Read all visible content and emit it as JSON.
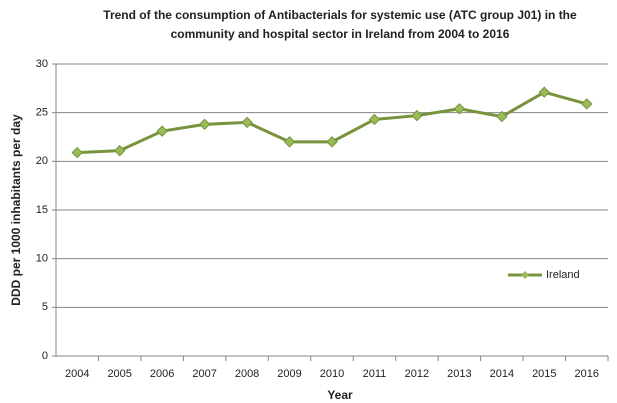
{
  "chart_data": {
    "type": "line",
    "title": "Trend of the consumption of Antibacterials for systemic use (ATC group J01) in the community and hospital sector in Ireland from 2004 to 2016",
    "xlabel": "Year",
    "ylabel": "DDD per 1000 inhabitants per day",
    "categories": [
      "2004",
      "2005",
      "2006",
      "2007",
      "2008",
      "2009",
      "2010",
      "2011",
      "2012",
      "2013",
      "2014",
      "2015",
      "2016"
    ],
    "series": [
      {
        "name": "Ireland",
        "color": "#77933c",
        "marker_color": "#9bbb59",
        "values": [
          20.9,
          21.1,
          23.1,
          23.8,
          24.0,
          22.0,
          22.0,
          24.3,
          24.7,
          25.4,
          24.6,
          27.1,
          25.9
        ]
      }
    ],
    "ylim": [
      0,
      30
    ],
    "yticks": [
      0,
      5,
      10,
      15,
      20,
      25,
      30
    ],
    "grid": true,
    "legend": "right"
  }
}
